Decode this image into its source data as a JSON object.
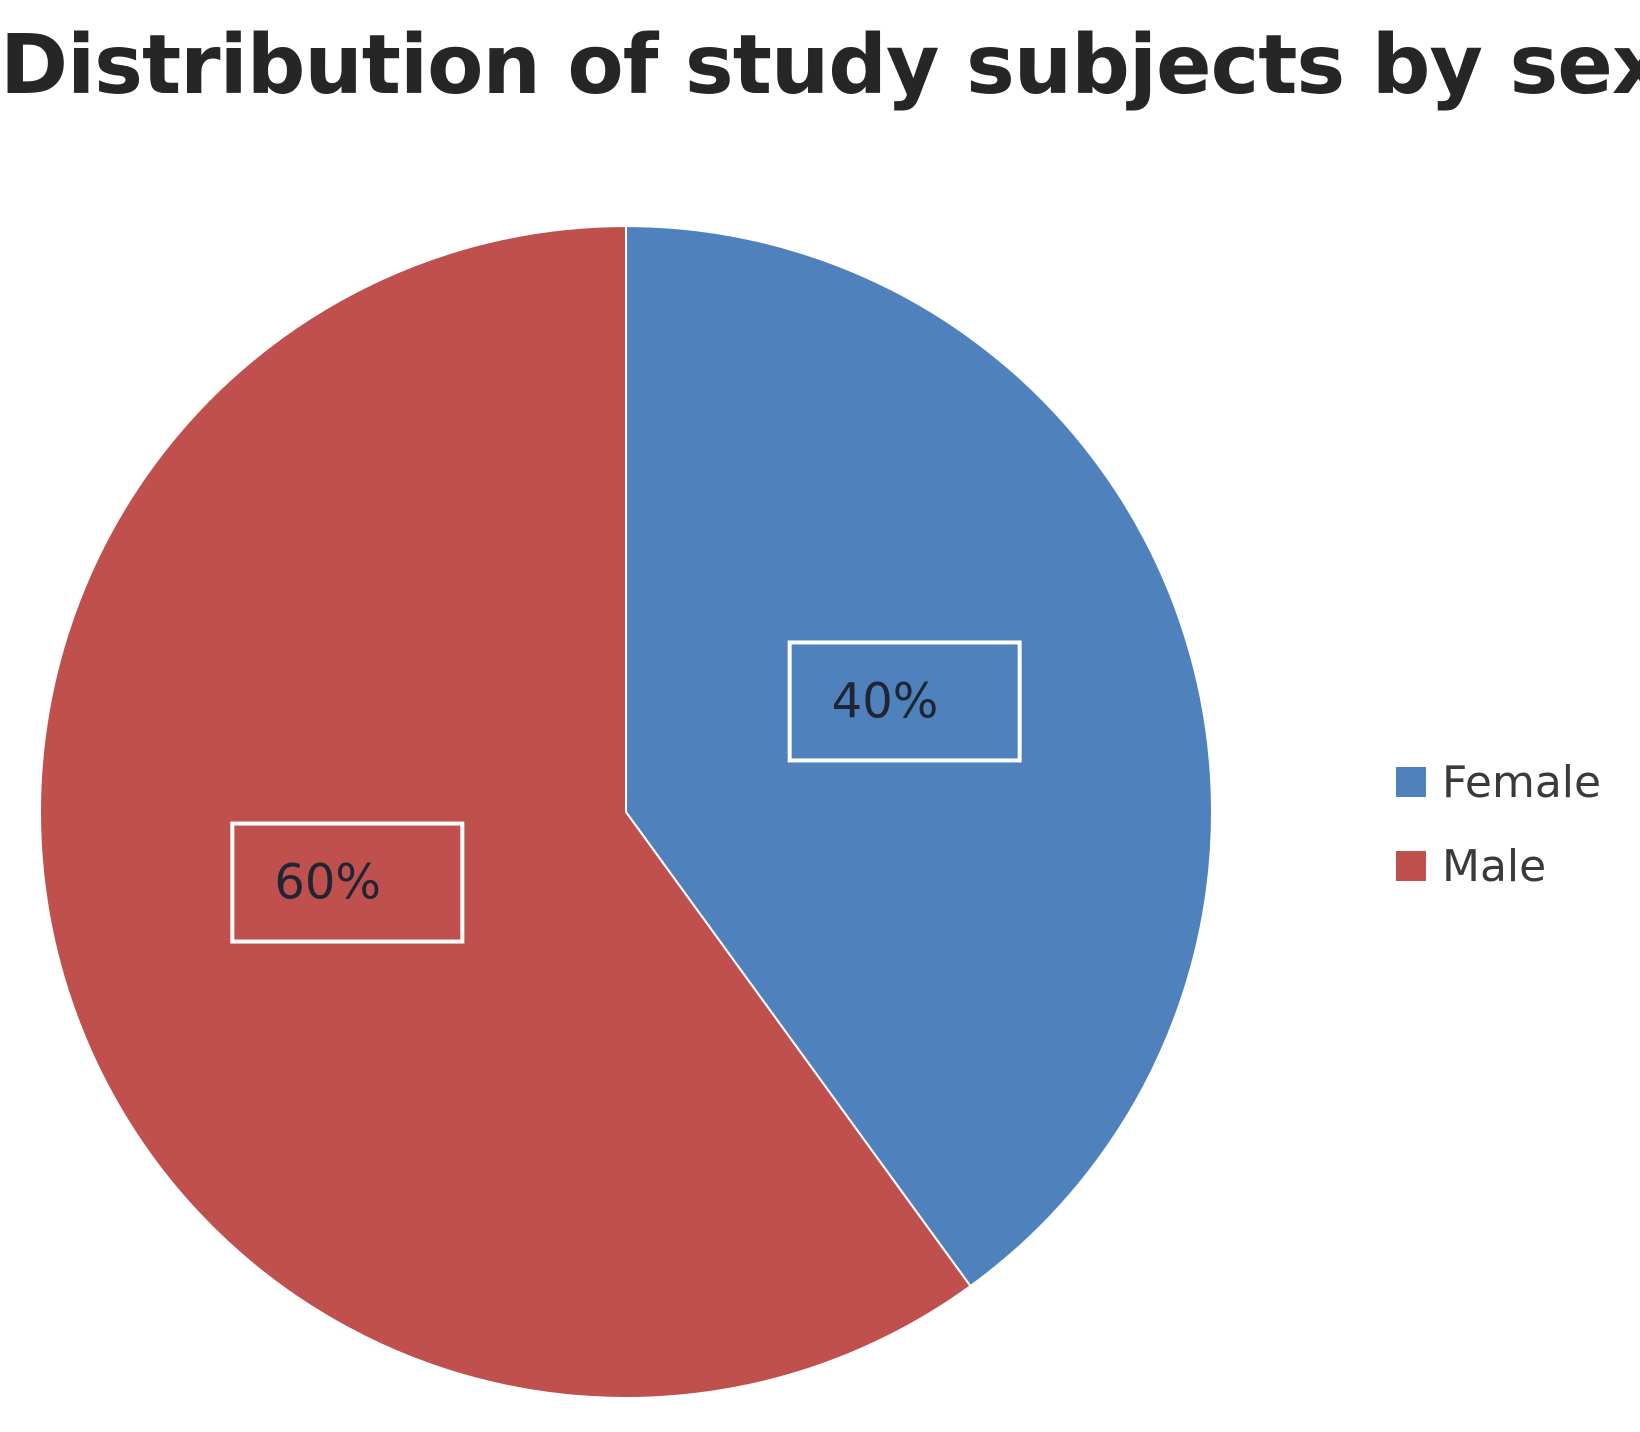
{
  "chart_data": {
    "type": "pie",
    "title": "Distribution of study subjects by sex",
    "slices": [
      {
        "label": "Female",
        "value": 40,
        "data_label": "40%",
        "color": "#4F81BD"
      },
      {
        "label": "Male",
        "value": 60,
        "data_label": "60%",
        "color": "#C0504D"
      }
    ],
    "legend": {
      "position": "right",
      "entries": [
        "Female",
        "Male"
      ]
    }
  }
}
